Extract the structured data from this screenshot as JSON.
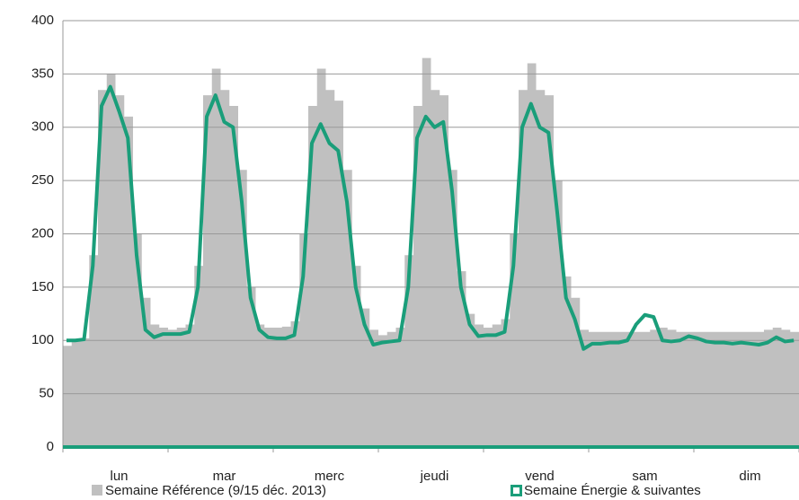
{
  "chart_data": {
    "type": "line",
    "categories": [
      null,
      null,
      null,
      null,
      null,
      null,
      "lun",
      null,
      null,
      null,
      null,
      null,
      null,
      null,
      null,
      null,
      null,
      null,
      "mar",
      null,
      null,
      null,
      null,
      null,
      null,
      null,
      null,
      null,
      null,
      null,
      "merc",
      null,
      null,
      null,
      null,
      null,
      null,
      null,
      null,
      null,
      null,
      null,
      "jeudi",
      null,
      null,
      null,
      null,
      null,
      null,
      null,
      null,
      null,
      null,
      null,
      "vend",
      null,
      null,
      null,
      null,
      null,
      null,
      null,
      null,
      null,
      null,
      null,
      "sam",
      null,
      null,
      null,
      null,
      null,
      null,
      null,
      null,
      null,
      null,
      null,
      "dim",
      null,
      null,
      null,
      null,
      null
    ],
    "series": [
      {
        "name": "Semaine Référence (9/15 déc. 2013)",
        "kind": "area",
        "color": "#c0c0c0",
        "values": [
          95,
          100,
          102,
          180,
          335,
          350,
          330,
          310,
          200,
          140,
          115,
          112,
          110,
          112,
          115,
          170,
          330,
          355,
          335,
          320,
          260,
          150,
          115,
          112,
          112,
          113,
          118,
          200,
          320,
          355,
          335,
          325,
          260,
          170,
          130,
          110,
          105,
          108,
          112,
          180,
          320,
          365,
          335,
          330,
          260,
          165,
          125,
          115,
          112,
          115,
          120,
          200,
          335,
          360,
          335,
          330,
          250,
          160,
          140,
          110,
          108,
          108,
          108,
          108,
          108,
          108,
          108,
          110,
          112,
          110,
          108,
          108,
          108,
          108,
          108,
          108,
          108,
          108,
          108,
          108,
          110,
          112,
          110,
          108
        ]
      },
      {
        "name": "Semaine Énergie & suivantes",
        "kind": "line",
        "color": "#1a9e7a",
        "values": [
          100,
          100,
          101,
          170,
          320,
          338,
          315,
          290,
          180,
          110,
          103,
          106,
          106,
          106,
          108,
          150,
          310,
          330,
          305,
          300,
          230,
          140,
          110,
          103,
          102,
          102,
          105,
          160,
          285,
          303,
          285,
          278,
          230,
          150,
          115,
          96,
          98,
          99,
          100,
          150,
          290,
          310,
          300,
          305,
          240,
          150,
          115,
          104,
          105,
          105,
          108,
          170,
          300,
          322,
          300,
          295,
          220,
          140,
          120,
          92,
          97,
          97,
          98,
          98,
          100,
          115,
          124,
          122,
          100,
          99,
          100,
          104,
          102,
          99,
          98,
          98,
          97,
          98,
          97,
          96,
          98,
          103,
          99,
          100
        ]
      }
    ],
    "ylim": [
      0,
      400
    ],
    "yticks": [
      0,
      50,
      100,
      150,
      200,
      250,
      300,
      350,
      400
    ],
    "grid": true
  }
}
